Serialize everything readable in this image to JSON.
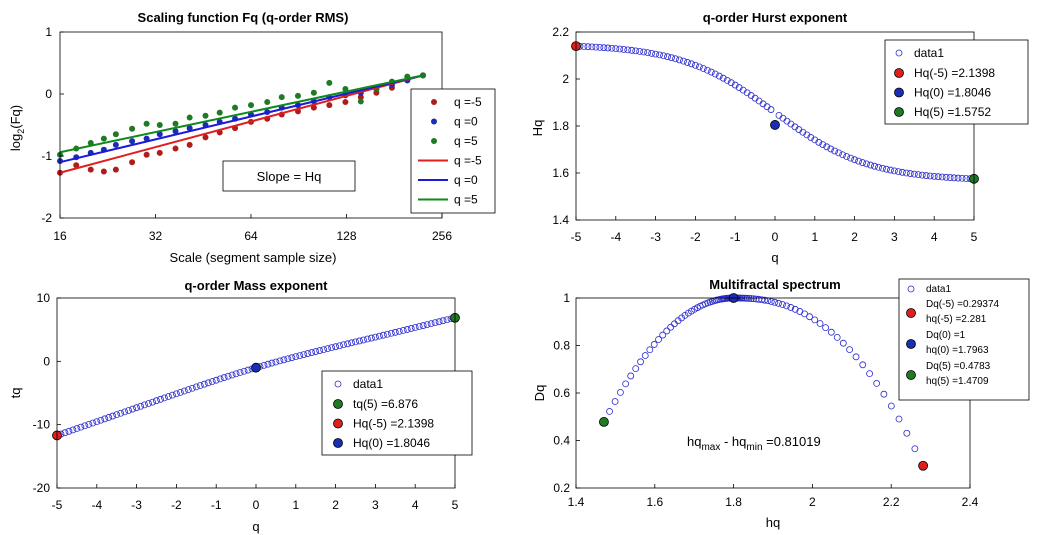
{
  "chart_data": [
    {
      "id": "fq",
      "type": "scatter",
      "title": "Scaling function Fq (q-order RMS)",
      "xlabel": "Scale (segment sample size)",
      "ylabel_main": "log",
      "ylabel_sub": "2",
      "ylabel_tail": "(Fq)",
      "xscale": "log2",
      "xlim": [
        16,
        256
      ],
      "ylim": [
        -2,
        1
      ],
      "xticks": [
        16,
        32,
        64,
        128,
        256
      ],
      "yticks": [
        -2,
        -1,
        0,
        1
      ],
      "series": [
        {
          "name": "q =-5",
          "kind": "points",
          "color": "#b01c1c",
          "x": [
            16,
            18,
            20,
            22,
            24,
            27,
            30,
            33,
            37,
            41,
            46,
            51,
            57,
            64,
            72,
            80,
            90,
            101,
            113,
            127,
            142,
            159,
            178,
            199,
            223
          ],
          "y": [
            -1.27,
            -1.15,
            -1.22,
            -1.25,
            -1.22,
            -1.1,
            -0.98,
            -0.95,
            -0.88,
            -0.82,
            -0.7,
            -0.62,
            -0.55,
            -0.45,
            -0.4,
            -0.33,
            -0.28,
            -0.22,
            -0.18,
            -0.13,
            -0.05,
            0.02,
            0.1,
            0.22,
            0.3
          ]
        },
        {
          "name": "q =0",
          "kind": "points",
          "color": "#1a2db5",
          "x": [
            16,
            18,
            20,
            22,
            24,
            27,
            30,
            33,
            37,
            41,
            46,
            51,
            57,
            64,
            72,
            80,
            90,
            101,
            113,
            127,
            142,
            159,
            178,
            199,
            223
          ],
          "y": [
            -1.08,
            -1.02,
            -0.95,
            -0.9,
            -0.82,
            -0.76,
            -0.72,
            -0.65,
            -0.6,
            -0.55,
            -0.5,
            -0.45,
            -0.4,
            -0.33,
            -0.29,
            -0.22,
            -0.18,
            -0.12,
            -0.05,
            -0.02,
            0.02,
            0.08,
            0.15,
            0.22,
            0.3
          ]
        },
        {
          "name": "q =5",
          "kind": "points",
          "color": "#1e7a24",
          "x": [
            16,
            18,
            20,
            22,
            24,
            27,
            30,
            33,
            37,
            41,
            46,
            51,
            57,
            64,
            72,
            80,
            90,
            101,
            113,
            127,
            142,
            159,
            178,
            199,
            223
          ],
          "y": [
            -0.98,
            -0.88,
            -0.79,
            -0.72,
            -0.65,
            -0.56,
            -0.48,
            -0.5,
            -0.48,
            -0.38,
            -0.35,
            -0.3,
            -0.22,
            -0.18,
            -0.13,
            -0.05,
            -0.03,
            0.02,
            0.18,
            0.08,
            -0.12,
            0.08,
            0.2,
            0.28,
            0.3
          ]
        },
        {
          "name": "q =-5",
          "kind": "line",
          "color": "#e01e1e",
          "x": [
            16,
            223
          ],
          "y": [
            -1.27,
            0.3
          ]
        },
        {
          "name": "q =0",
          "kind": "line",
          "color": "#1a1ad8",
          "x": [
            16,
            223
          ],
          "y": [
            -1.1,
            0.3
          ]
        },
        {
          "name": "q =5",
          "kind": "line",
          "color": "#0e8a1a",
          "x": [
            16,
            223
          ],
          "y": [
            -0.94,
            0.3
          ]
        }
      ],
      "annotation": "Slope = Hq"
    },
    {
      "id": "hurst",
      "type": "scatter",
      "title": "q-order Hurst exponent",
      "xlabel": "q",
      "ylabel": "Hq",
      "xlim": [
        -5,
        5
      ],
      "ylim": [
        1.4,
        2.2
      ],
      "xticks": [
        -5,
        -4,
        -3,
        -2,
        -1,
        0,
        1,
        2,
        3,
        4,
        5
      ],
      "yticks": [
        1.4,
        1.6,
        1.8,
        2,
        2.2
      ],
      "ytick_labels": [
        "1.4",
        "1.6",
        "1.8",
        "2",
        "2.2"
      ],
      "curve": {
        "name": "data1",
        "color": "#2a2ad0",
        "q_start": -5,
        "q_end": 5,
        "count": 101,
        "h_plus": 1.5752,
        "h_minus": 2.1398,
        "h_center": 1.8046,
        "scale": 2.35
      },
      "markers": [
        {
          "name": "Hq(-5) =2.1398",
          "x": -5,
          "y": 2.1398,
          "color": "#e01e1e"
        },
        {
          "name": "Hq(0) =1.8046",
          "x": 0,
          "y": 1.8046,
          "color": "#1a2db5"
        },
        {
          "name": "Hq(5) =1.5752",
          "x": 5,
          "y": 1.5752,
          "color": "#1e7a24"
        }
      ]
    },
    {
      "id": "mass",
      "type": "scatter",
      "title": "q-order Mass exponent",
      "xlabel": "q",
      "ylabel": "tq",
      "xlim": [
        -5,
        5
      ],
      "ylim": [
        -20,
        10
      ],
      "xticks": [
        -5,
        -4,
        -3,
        -2,
        -1,
        0,
        1,
        2,
        3,
        4,
        5
      ],
      "yticks": [
        -20,
        -10,
        0,
        10
      ],
      "curve": {
        "name": "data1",
        "color": "#2a2ad0",
        "q_start": -5,
        "q_end": 5,
        "count": 101
      },
      "markers": [
        {
          "name": "tq(5) =6.876",
          "x": 5,
          "y": 6.876,
          "color": "#1e7a24"
        },
        {
          "name": "Hq(-5) =2.1398",
          "x": -5,
          "y": -11.699,
          "color": "#e01e1e"
        },
        {
          "name": "Hq(0) =1.8046",
          "x": 0,
          "y": -1,
          "color": "#1a2db5"
        }
      ]
    },
    {
      "id": "spectrum",
      "type": "scatter",
      "title": "Multifractal spectrum",
      "xlabel": "hq",
      "ylabel": "Dq",
      "xlim": [
        1.4,
        2.4
      ],
      "ylim": [
        0.2,
        1
      ],
      "xticks": [
        1.4,
        1.6,
        1.8,
        2,
        2.2,
        2.4
      ],
      "xtick_labels": [
        "1.4",
        "1.6",
        "1.8",
        "2",
        "2.2",
        "2.4"
      ],
      "yticks": [
        0.2,
        0.4,
        0.6,
        0.8,
        1
      ],
      "ytick_labels": [
        "0.2",
        "0.4",
        "0.6",
        "0.8",
        "1"
      ],
      "curve": {
        "name": "data1",
        "color": "#2a2ad0",
        "count": 101
      },
      "markers": [
        {
          "name_line1": "Dq(-5) =0.29374",
          "name_line2": "hq(-5) =2.281",
          "x": 2.281,
          "y": 0.29374,
          "color": "#e01e1e"
        },
        {
          "name_line1": "Dq(0) =1",
          "name_line2": "hq(0) =1.7963",
          "x": 1.8,
          "y": 1.0,
          "color": "#1a2db5"
        },
        {
          "name_line1": "Dq(5) =0.4783",
          "name_line2": "hq(5) =1.4709",
          "x": 1.4709,
          "y": 0.4783,
          "color": "#1e7a24"
        }
      ],
      "annotation": {
        "main1": "hq",
        "sub1": "max",
        "main2": " - hq",
        "sub2": "min",
        "value": " =0.81019"
      }
    }
  ]
}
